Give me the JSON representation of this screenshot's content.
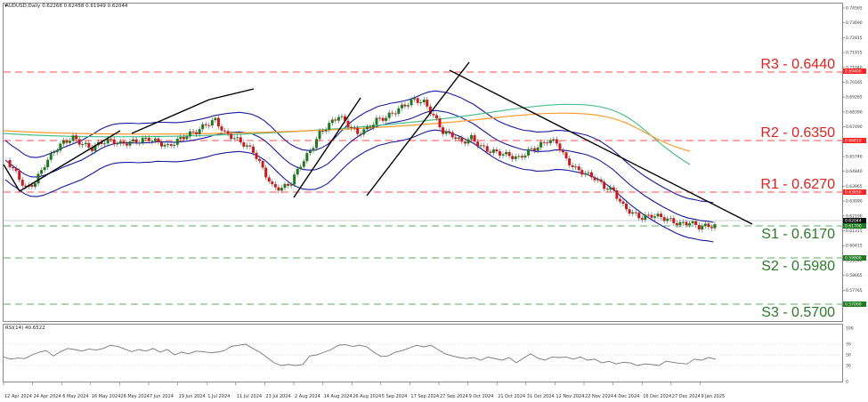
{
  "header": {
    "symbol_line": "AUDUSD,Daily  0.62268 0.62458 0.61949 0.62044"
  },
  "rsi_header": "RSI(14) 40.6522",
  "colors": {
    "resistance": "#ff4d4d",
    "support": "#2e8b2e",
    "bull": "#1e7a1e",
    "bear": "#d01818",
    "bb": "#1a1aa0",
    "ma_fast": "#4cc08a",
    "ma_slow": "#ff9a2e",
    "trend": "#000000"
  },
  "chart_data": {
    "type": "candlestick",
    "title": "AUDUSD,Daily",
    "ohlc_last": {
      "open": 0.62268,
      "high": 0.62458,
      "low": 0.61949,
      "close": 0.62044
    },
    "y_ticks": [
      "0.74565",
      "0.73690",
      "0.72815",
      "0.71915",
      "0.71040",
      "0.70165",
      "0.69265",
      "0.68390",
      "0.67490",
      "0.66615",
      "0.65740",
      "0.64840",
      "0.63965",
      "0.63090",
      "0.62190",
      "0.61315",
      "0.60415",
      "0.59540",
      "0.58665",
      "0.57765",
      "0.56915"
    ],
    "price_tags": [
      {
        "label": "0.69400",
        "type": "resistance"
      },
      {
        "label": "0.66610",
        "type": "resistance"
      },
      {
        "label": "0.63650",
        "type": "resistance"
      },
      {
        "label": "0.62044",
        "type": "current"
      },
      {
        "label": "0.61700",
        "type": "support"
      },
      {
        "label": "0.59800",
        "type": "support"
      },
      {
        "label": "0.57000",
        "type": "support"
      }
    ],
    "levels": [
      {
        "name": "R3 - 0.6440",
        "value": 0.644,
        "type": "resistance"
      },
      {
        "name": "R2 - 0.6350",
        "value": 0.635,
        "type": "resistance"
      },
      {
        "name": "R1 - 0.6270",
        "value": 0.627,
        "type": "resistance"
      },
      {
        "name": "S1 - 0.6170",
        "value": 0.617,
        "type": "support"
      },
      {
        "name": "S2 - 0.5980",
        "value": 0.598,
        "type": "support"
      },
      {
        "name": "S3 - 0.5700",
        "value": 0.57,
        "type": "support"
      }
    ],
    "x_ticks": [
      "12 Apr 2024",
      "24 Apr 2024",
      "6 May 2024",
      "16 May 2024",
      "28 May 2024",
      "7 Jun 2024",
      "19 Jun 2024",
      "1 Jul 2024",
      "11 Jul 2024",
      "23 Jul 2024",
      "2 Aug 2024",
      "14 Aug 2024",
      "26 Aug 2024",
      "5 Sep 2024",
      "17 Sep 2024",
      "27 Sep 2024",
      "9 Oct 2024",
      "21 Oct 2024",
      "31 Oct 2024",
      "12 Nov 2024",
      "22 Nov 2024",
      "4 Dec 2024",
      "16 Dec 2024",
      "27 Dec 2024",
      "9 Jan 2025"
    ],
    "close_path_y": [
      180,
      195,
      212,
      205,
      185,
      170,
      160,
      155,
      162,
      167,
      160,
      158,
      162,
      160,
      158,
      156,
      160,
      165,
      158,
      152,
      148,
      140,
      135,
      150,
      155,
      162,
      170,
      190,
      210,
      212,
      205,
      185,
      170,
      150,
      140,
      130,
      140,
      150,
      145,
      135,
      132,
      125,
      118,
      112,
      115,
      130,
      148,
      152,
      160,
      155,
      165,
      170,
      172,
      175,
      178,
      170,
      165,
      158,
      160,
      180,
      190,
      195,
      200,
      210,
      215,
      232,
      240,
      245,
      242,
      244,
      248,
      252,
      250,
      255,
      254
    ],
    "rsi": {
      "ticks": [
        "100",
        "70",
        "50",
        "30",
        "0"
      ],
      "values": [
        46,
        42,
        44,
        43,
        50,
        55,
        58,
        48,
        56,
        62,
        60,
        57,
        61,
        59,
        62,
        68,
        66,
        61,
        56,
        60,
        57,
        62,
        55,
        60,
        50,
        55,
        52,
        57,
        56,
        54,
        55,
        58,
        66,
        68,
        70,
        62,
        55,
        45,
        35,
        30,
        32,
        30,
        32,
        48,
        50,
        55,
        60,
        68,
        69,
        66,
        68,
        65,
        55,
        47,
        48,
        55,
        58,
        63,
        68,
        65,
        68,
        60,
        52,
        48,
        45,
        43,
        45,
        40,
        46,
        43,
        40,
        45,
        35,
        44,
        52,
        44,
        40,
        46,
        45,
        46,
        42,
        46,
        40,
        42,
        35,
        38,
        33,
        36,
        35,
        30,
        33,
        32,
        30,
        38,
        36,
        34,
        33,
        42,
        40,
        45,
        42
      ]
    },
    "indicators": [
      "Bollinger Bands",
      "Moving Average (fast)",
      "Moving Average (slow)",
      "RSI(14)"
    ]
  }
}
